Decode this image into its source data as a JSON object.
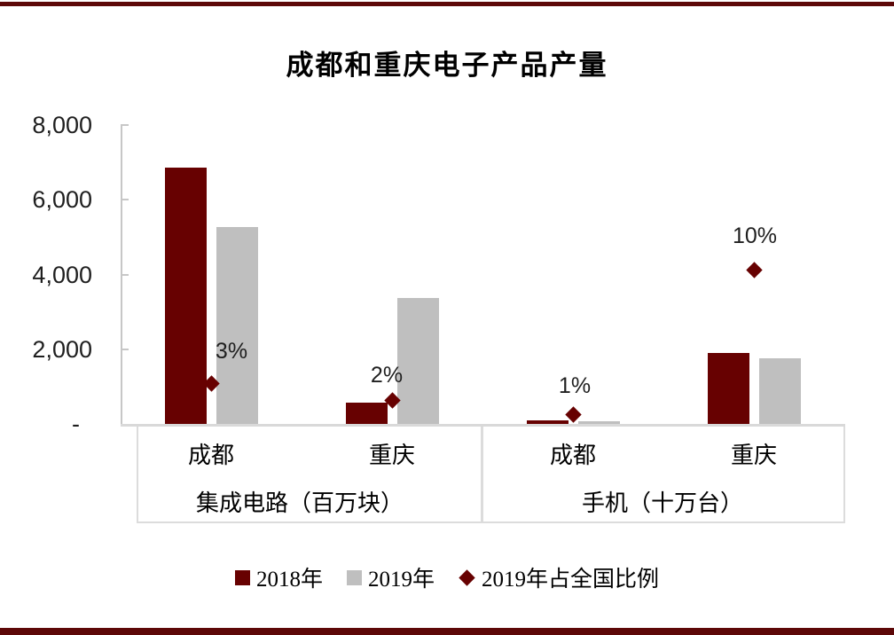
{
  "page": {
    "accent_color": "#5d0808",
    "background": "#ffffff"
  },
  "chart_data": {
    "type": "bar",
    "title": "成都和重庆电子产品产量",
    "ylim": [
      0,
      8000
    ],
    "grid": false,
    "legend_position": "bottom",
    "yticks": [
      {
        "label": "8,000",
        "value": 8000
      },
      {
        "label": "6,000",
        "value": 6000
      },
      {
        "label": "4,000",
        "value": 4000
      },
      {
        "label": "2,000",
        "value": 2000
      },
      {
        "label": "-",
        "value": 0
      }
    ],
    "groups": [
      {
        "label": "集成电路（百万块）",
        "categories": [
          "成都",
          "重庆"
        ]
      },
      {
        "label": "手机（十万台）",
        "categories": [
          "成都",
          "重庆"
        ]
      }
    ],
    "categories_flat": [
      "成都",
      "重庆",
      "成都",
      "重庆"
    ],
    "series": [
      {
        "name": "2018年",
        "type": "bar",
        "color": "#670101",
        "values": [
          6850,
          570,
          95,
          1900
        ]
      },
      {
        "name": "2019年",
        "type": "bar",
        "color": "#bfbfbf",
        "values": [
          5270,
          3370,
          80,
          1760
        ]
      },
      {
        "name": "2019年占全国比例",
        "type": "scatter",
        "marker": "diamond",
        "color": "#670101",
        "axis": "secondary",
        "labels": [
          "3%",
          "2%",
          "1%",
          "10%"
        ],
        "values_pct": [
          3,
          2,
          1,
          10
        ],
        "plotted_at_primary_equivalent": [
          1070,
          630,
          260,
          4110
        ]
      }
    ]
  }
}
